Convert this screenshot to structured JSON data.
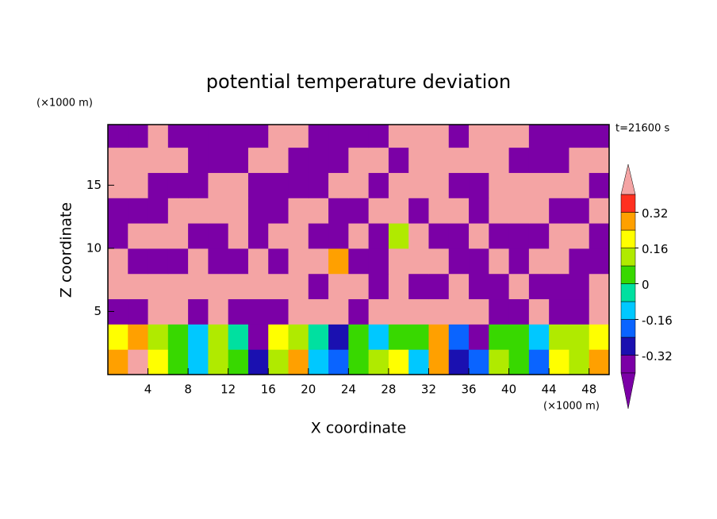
{
  "chart_data": {
    "type": "contour",
    "title": "potential temperature deviation",
    "x_label": "X coordinate",
    "y_label": "Z coordinate",
    "x_unit": "(×1000 m)",
    "y_unit": "(×1000 m)",
    "annotation": "t=21600 s",
    "xlim": [
      0,
      50
    ],
    "ylim": [
      0,
      19.8
    ],
    "xticks": [
      4,
      8,
      12,
      16,
      20,
      24,
      28,
      32,
      36,
      40,
      44,
      48
    ],
    "yticks": [
      5,
      10,
      15
    ],
    "levels": [
      -0.4,
      -0.32,
      -0.24,
      -0.16,
      -0.08,
      0,
      0.08,
      0.16,
      0.24,
      0.32,
      0.4
    ],
    "colors": [
      "#7b00a6",
      "#7b00a6",
      "#1a10b0",
      "#0a64ff",
      "#00c8ff",
      "#00e0a0",
      "#38d800",
      "#b0ea00",
      "#ffff00",
      "#ffa000",
      "#ff3020",
      "#f4a4a4"
    ],
    "colorbar_ticks": [
      -0.32,
      -0.16,
      0,
      0.16,
      0.32
    ],
    "field": {
      "x": [
        1,
        3,
        5,
        7,
        9,
        11,
        13,
        15,
        17,
        19,
        21,
        23,
        25,
        27,
        29,
        31,
        33,
        35,
        37,
        39,
        41,
        43,
        45,
        47,
        49
      ],
      "z": [
        1,
        3,
        5,
        7,
        9,
        11,
        13,
        15,
        17,
        19
      ],
      "values": [
        [
          0.3,
          0.4,
          0.2,
          0.05,
          -0.1,
          0.1,
          0.05,
          -0.3,
          0.1,
          0.3,
          -0.1,
          -0.2,
          0,
          0.1,
          0.2,
          -0.1,
          0.3,
          -0.3,
          -0.2,
          0.1,
          0.05,
          -0.2,
          0.2,
          0.1,
          0.3
        ],
        [
          0.2,
          0.3,
          0.1,
          0,
          -0.1,
          0.15,
          -0.05,
          -0.35,
          0.2,
          0.1,
          -0.05,
          -0.25,
          0,
          -0.1,
          0.05,
          0,
          0.3,
          -0.2,
          -0.35,
          0,
          0.05,
          -0.1,
          0.1,
          0.15,
          0.2
        ],
        [
          -0.5,
          -0.5,
          0.5,
          0.5,
          -0.5,
          0.5,
          -0.5,
          -0.5,
          -0.5,
          0.5,
          0.5,
          0.5,
          -0.5,
          0.5,
          0.5,
          0.5,
          0.5,
          0.5,
          0.5,
          -0.5,
          -0.5,
          0.5,
          -0.5,
          -0.5,
          0.5
        ],
        [
          0.5,
          0.5,
          0.5,
          0.5,
          0.5,
          0.5,
          0.5,
          0.5,
          0.5,
          0.5,
          -0.5,
          0.5,
          0.5,
          -0.5,
          0.5,
          -0.5,
          -0.5,
          0.5,
          -0.5,
          -0.5,
          0.5,
          -0.5,
          -0.5,
          -0.5,
          0.5
        ],
        [
          0.5,
          -0.5,
          -0.5,
          -0.5,
          0.5,
          -0.5,
          -0.5,
          0.5,
          -0.5,
          0.5,
          0.5,
          0.3,
          -0.5,
          -0.5,
          0.5,
          0.5,
          0.5,
          -0.5,
          -0.5,
          0.5,
          -0.5,
          0.5,
          0.5,
          -0.5,
          -0.5
        ],
        [
          -0.5,
          0.5,
          0.5,
          0.5,
          -0.5,
          -0.5,
          0.5,
          -0.5,
          0.5,
          0.5,
          -0.5,
          -0.5,
          0.5,
          -0.5,
          0.1,
          0.5,
          -0.5,
          -0.5,
          0.5,
          -0.5,
          -0.5,
          -0.5,
          0.5,
          0.5,
          -0.5
        ],
        [
          -0.5,
          -0.5,
          -0.5,
          0.5,
          0.5,
          0.5,
          0.5,
          -0.5,
          -0.5,
          0.5,
          0.5,
          -0.5,
          -0.5,
          0.5,
          0.5,
          -0.5,
          0.5,
          0.5,
          -0.5,
          0.5,
          0.5,
          0.5,
          -0.5,
          -0.5,
          0.5
        ],
        [
          0.5,
          0.5,
          -0.5,
          -0.5,
          -0.5,
          0.5,
          0.5,
          -0.5,
          -0.5,
          -0.5,
          -0.5,
          0.5,
          0.5,
          -0.5,
          0.5,
          0.5,
          0.5,
          -0.5,
          -0.5,
          0.5,
          0.5,
          0.5,
          0.5,
          0.5,
          -0.5
        ],
        [
          0.5,
          0.5,
          0.5,
          0.5,
          -0.5,
          -0.5,
          -0.5,
          0.5,
          0.5,
          -0.5,
          -0.5,
          -0.5,
          0.5,
          0.5,
          -0.5,
          0.5,
          0.5,
          0.5,
          0.5,
          0.5,
          -0.5,
          -0.5,
          -0.5,
          0.5,
          0.5
        ],
        [
          -0.5,
          -0.5,
          0.5,
          -0.5,
          -0.5,
          -0.5,
          -0.5,
          -0.5,
          0.5,
          0.5,
          -0.5,
          -0.5,
          -0.5,
          -0.5,
          0.5,
          0.5,
          0.5,
          -0.5,
          0.5,
          0.5,
          0.5,
          -0.5,
          -0.5,
          -0.5,
          -0.5
        ]
      ]
    }
  }
}
